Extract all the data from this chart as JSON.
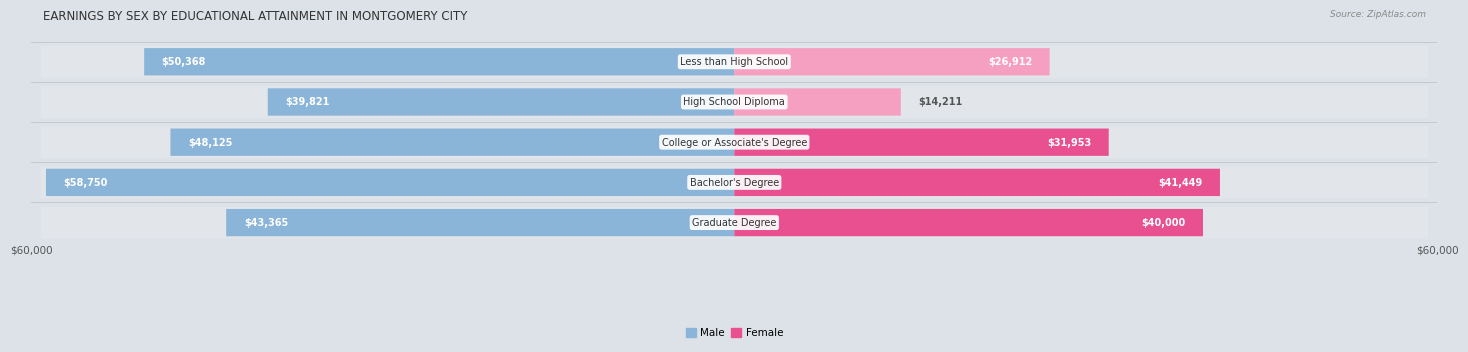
{
  "title": "EARNINGS BY SEX BY EDUCATIONAL ATTAINMENT IN MONTGOMERY CITY",
  "source": "Source: ZipAtlas.com",
  "categories": [
    "Less than High School",
    "High School Diploma",
    "College or Associate's Degree",
    "Bachelor's Degree",
    "Graduate Degree"
  ],
  "male_values": [
    50368,
    39821,
    48125,
    58750,
    43365
  ],
  "female_values": [
    26912,
    14211,
    31953,
    41449,
    40000
  ],
  "male_labels": [
    "$50,368",
    "$39,821",
    "$48,125",
    "$58,750",
    "$43,365"
  ],
  "female_labels": [
    "$26,912",
    "$14,211",
    "$31,953",
    "$41,449",
    "$40,000"
  ],
  "max_value": 60000,
  "male_color": "#8ab4d8",
  "female_color_dark": "#e85090",
  "female_color_light": "#f5a0c0",
  "row_bg_color": "#e2e6ea",
  "title_fontsize": 8.5,
  "label_fontsize": 7.0,
  "axis_label_fontsize": 7.5,
  "legend_fontsize": 7.5,
  "source_fontsize": 6.5
}
